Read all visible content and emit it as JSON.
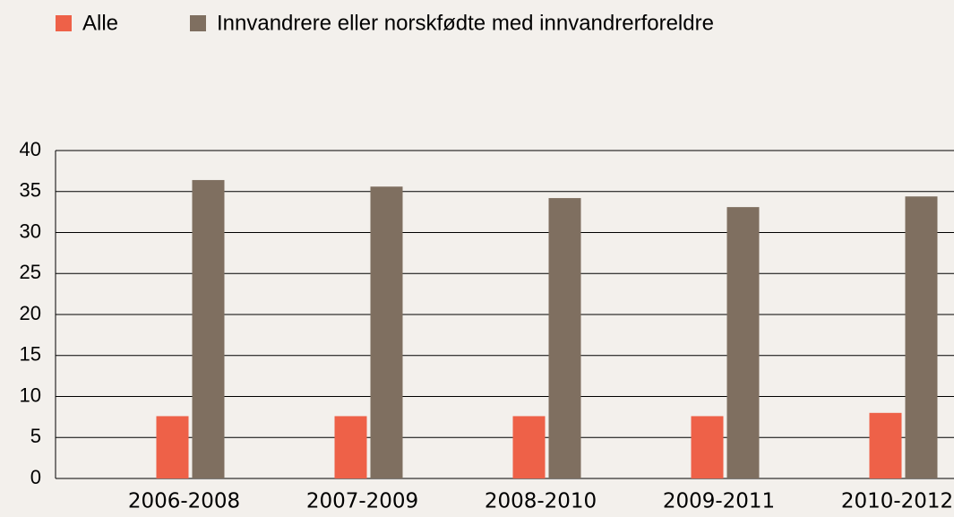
{
  "chart_data": {
    "type": "bar",
    "categories": [
      "2006-2008",
      "2007-2009",
      "2008-2010",
      "2009-2011",
      "2010-2012"
    ],
    "series": [
      {
        "name": "Alle",
        "color": "#ee6148",
        "values": [
          7.6,
          7.6,
          7.6,
          7.6,
          8.0
        ]
      },
      {
        "name": "Innvandrere eller norskfødte med innvandrerforeldre",
        "color": "#7f6f60",
        "values": [
          36.4,
          35.6,
          34.2,
          33.1,
          34.4
        ]
      }
    ],
    "ylim": [
      0,
      40
    ],
    "yticks": [
      0,
      5,
      10,
      15,
      20,
      25,
      30,
      35,
      40
    ],
    "grid": true,
    "legend": "top"
  }
}
